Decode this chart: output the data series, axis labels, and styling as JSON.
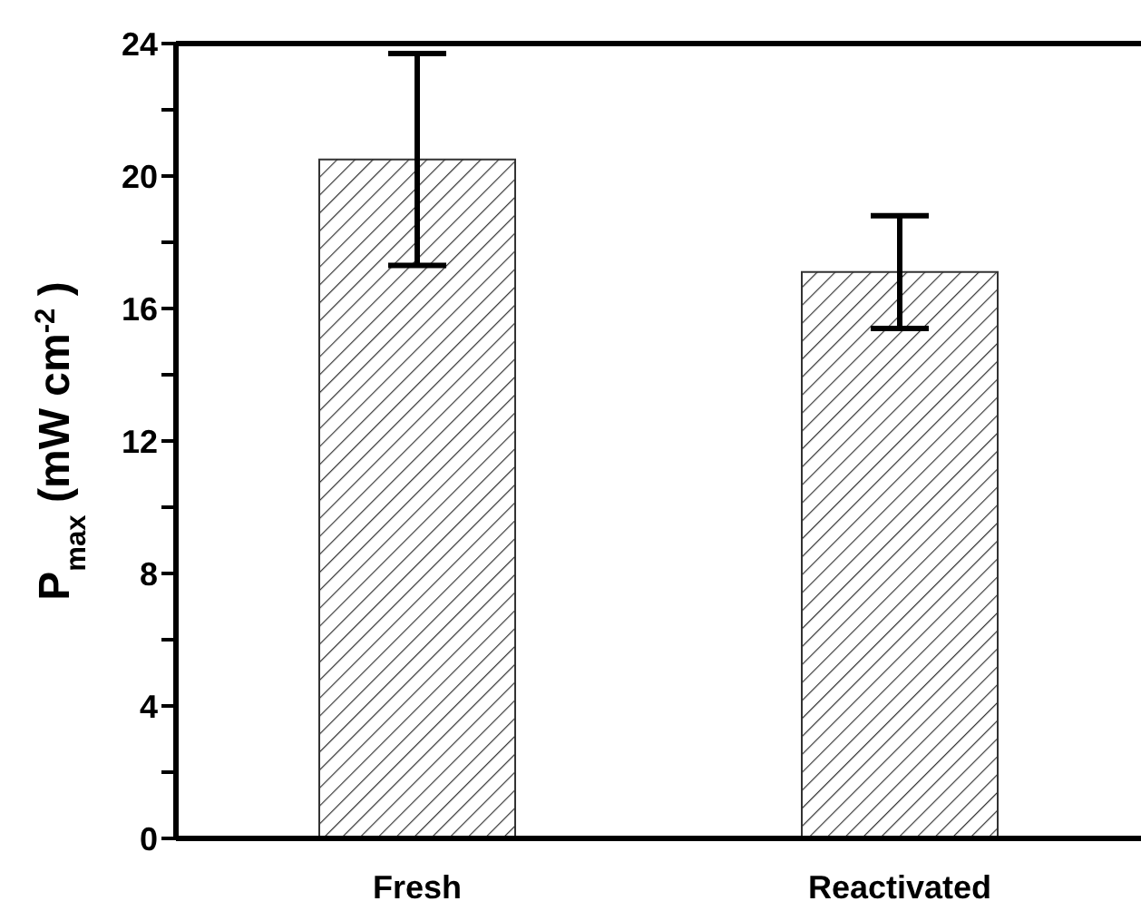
{
  "chart_data": {
    "type": "bar",
    "ylabel": "P$_{max}$ (mW cm$^{-2}$)",
    "categories": [
      "Fresh",
      "Reactivated"
    ],
    "values": [
      20.5,
      17.1
    ],
    "errors": [
      3.2,
      1.7
    ],
    "color": "#333333",
    "ylim": [
      0,
      24
    ],
    "yticks": [
      0,
      {
        "value": 2,
        "label": null
      },
      4,
      {
        "value": 6,
        "label": null
      },
      8,
      {
        "value": 10,
        "label": null
      },
      12,
      {
        "value": 14,
        "label": null
      },
      16,
      {
        "value": 18,
        "label": null
      },
      20,
      {
        "value": 22,
        "label": null
      },
      24
    ],
    "grid": false
  }
}
